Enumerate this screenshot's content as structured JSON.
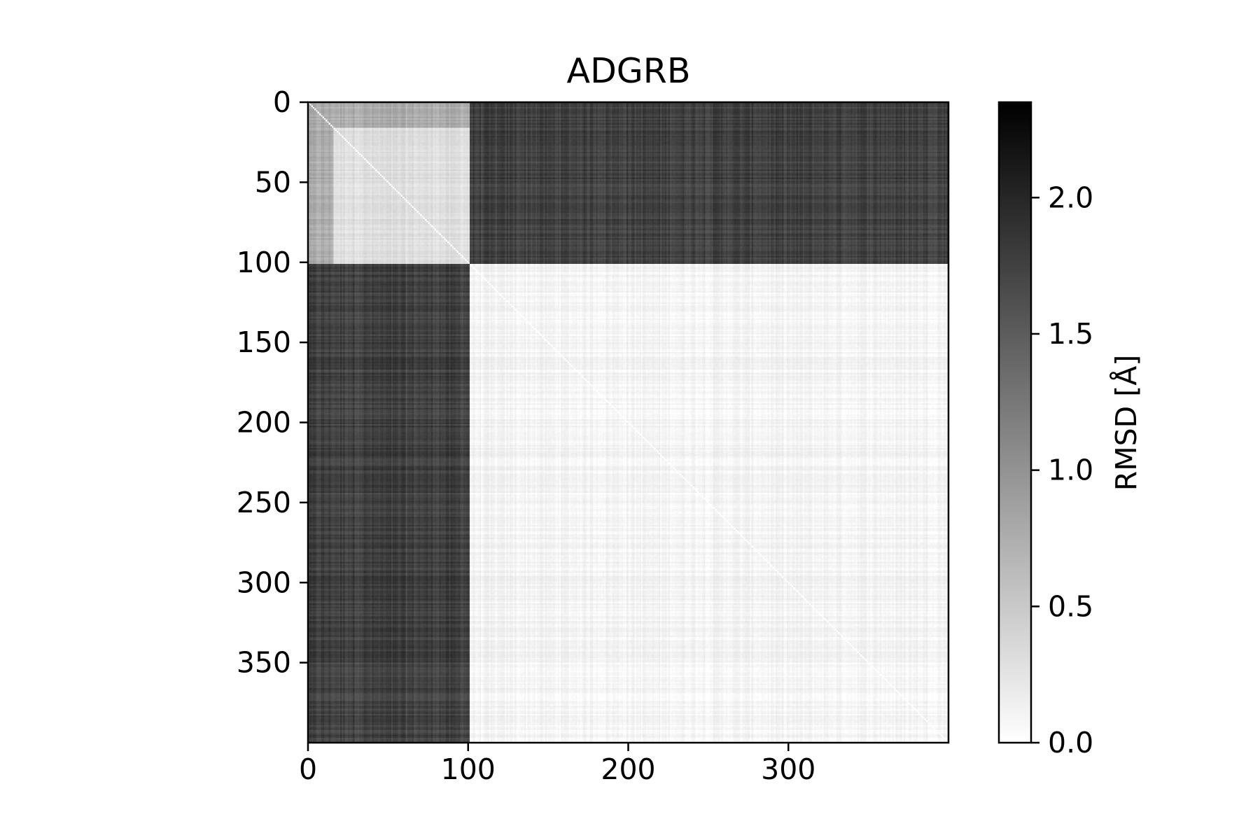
{
  "chart_data": {
    "type": "heatmap",
    "title": "ADGRB",
    "xlabel": "",
    "ylabel": "",
    "matrix_size": 400,
    "x_range": [
      0,
      400
    ],
    "y_range": [
      0,
      400
    ],
    "x_ticks": [
      0,
      100,
      200,
      300
    ],
    "y_ticks": [
      0,
      50,
      100,
      150,
      200,
      250,
      300,
      350
    ],
    "colormap": "Greys",
    "colormap_range": [
      0.0,
      2.35
    ],
    "colorbar": {
      "label": "RMSD [Å]",
      "ticks": [
        0.0,
        0.5,
        1.0,
        1.5,
        2.0
      ],
      "tick_labels": [
        "0.0",
        "0.5",
        "1.0",
        "1.5",
        "2.0"
      ]
    },
    "clusters": [
      {
        "start": 0,
        "end": 101
      },
      {
        "start": 101,
        "end": 400
      }
    ],
    "block_means": {
      "cluster1_within": 0.3,
      "cluster1_edge_rows_0_16": 0.75,
      "between_clusters": 1.75,
      "cluster2_within": 0.1
    },
    "diagonal_value": 0.0,
    "grid": false,
    "legend": "none"
  }
}
